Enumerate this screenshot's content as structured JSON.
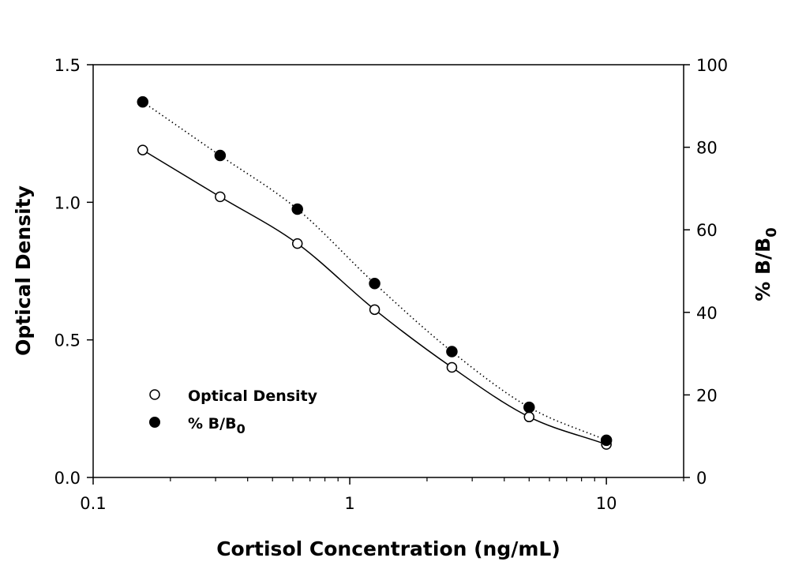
{
  "chart_data": {
    "type": "scatter",
    "title": "",
    "xlabel": "Cortisol Concentration (ng/mL)",
    "ylabel": "Optical Density",
    "y2label": "% B/B",
    "y2label_sub": "0",
    "xscale": "log",
    "xlim": [
      0.1,
      20
    ],
    "ylim": [
      0,
      1.5
    ],
    "y2lim": [
      0,
      100
    ],
    "xticks": [
      0.1,
      1,
      10
    ],
    "xtick_labels": [
      "0.1",
      "1",
      "10"
    ],
    "yticks": [
      0,
      0.5,
      1.0,
      1.5
    ],
    "ytick_labels": [
      "0.0",
      "0.5",
      "1.0",
      "1.5"
    ],
    "y2ticks": [
      0,
      20,
      40,
      60,
      80,
      100
    ],
    "y2tick_labels": [
      "0",
      "20",
      "40",
      "60",
      "80",
      "100"
    ],
    "grid": false,
    "legend_position": "bottom-left",
    "series": [
      {
        "name": "Optical Density",
        "axis": "left",
        "marker": "open-circle",
        "line": "solid",
        "x": [
          0.156,
          0.3125,
          0.625,
          1.25,
          2.5,
          5,
          10
        ],
        "y": [
          1.19,
          1.02,
          0.85,
          0.61,
          0.4,
          0.22,
          0.12
        ]
      },
      {
        "name": "% B/B",
        "name_sub": "0",
        "axis": "right",
        "marker": "filled-circle",
        "line": "dotted",
        "x": [
          0.156,
          0.3125,
          0.625,
          1.25,
          2.5,
          5,
          10
        ],
        "y": [
          91,
          78,
          65,
          47,
          30.5,
          17,
          9
        ]
      }
    ],
    "colors": {
      "ink": "#000000",
      "background": "#ffffff"
    }
  }
}
